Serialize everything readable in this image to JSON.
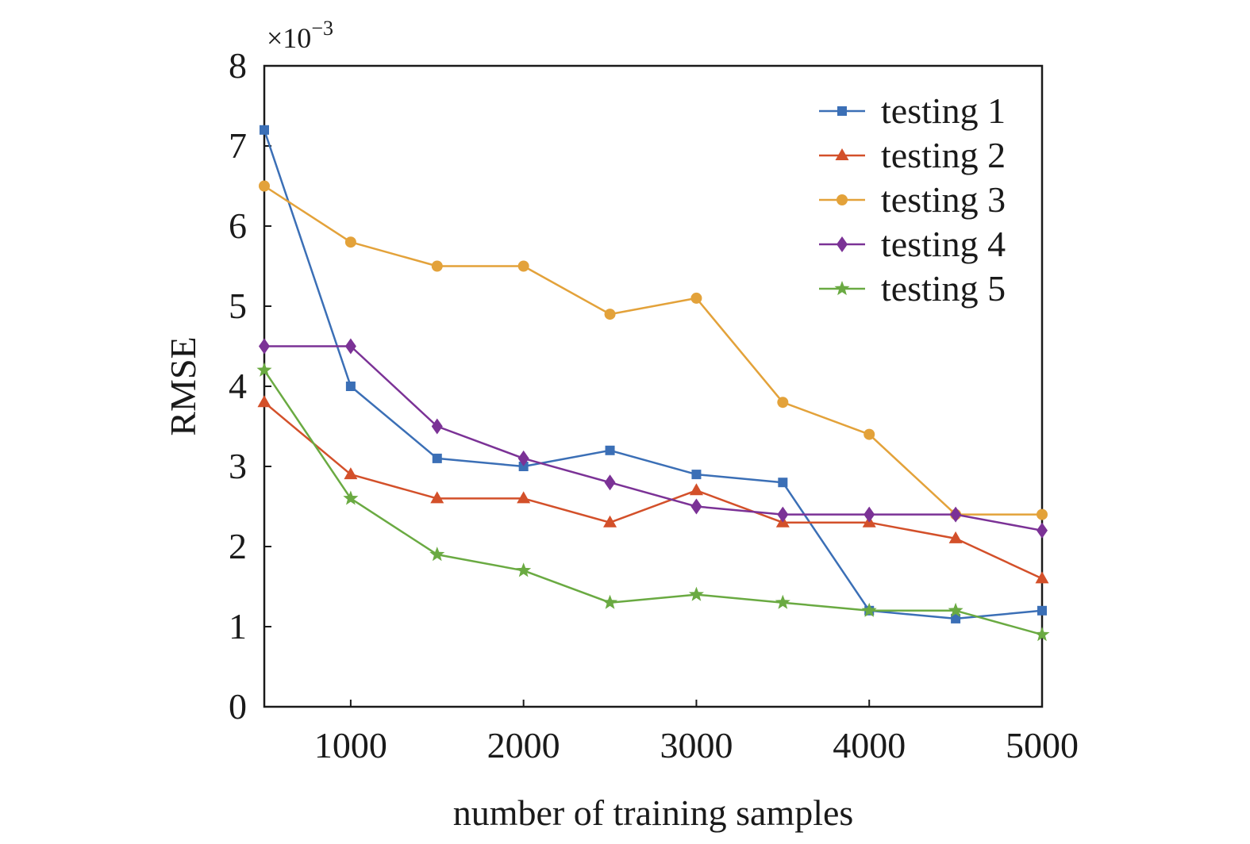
{
  "chart_data": {
    "type": "line",
    "xlabel": "number of training samples",
    "ylabel": "RMSE",
    "y_scale_note": {
      "base": "×10",
      "exponent": "−3"
    },
    "xlim": [
      500,
      5000
    ],
    "ylim": [
      0,
      8
    ],
    "x_ticks": [
      1000,
      2000,
      3000,
      4000,
      5000
    ],
    "y_ticks": [
      0,
      1,
      2,
      3,
      4,
      5,
      6,
      7,
      8
    ],
    "grid": false,
    "legend_position": "top-right",
    "x": [
      500,
      1000,
      1500,
      2000,
      2500,
      3000,
      3500,
      4000,
      4500,
      5000
    ],
    "series": [
      {
        "name": "testing 1",
        "color": "#3b6fb6",
        "marker": "square",
        "values": [
          7.2,
          4.0,
          3.1,
          3.0,
          3.2,
          2.9,
          2.8,
          1.2,
          1.1,
          1.2
        ]
      },
      {
        "name": "testing 2",
        "color": "#d3502a",
        "marker": "triangle",
        "values": [
          3.8,
          2.9,
          2.6,
          2.6,
          2.3,
          2.7,
          2.3,
          2.3,
          2.1,
          1.6
        ]
      },
      {
        "name": "testing 3",
        "color": "#e3a23a",
        "marker": "circle",
        "values": [
          6.5,
          5.8,
          5.5,
          5.5,
          4.9,
          5.1,
          3.8,
          3.4,
          2.4,
          2.4
        ]
      },
      {
        "name": "testing 4",
        "color": "#7b3296",
        "marker": "diamond",
        "values": [
          4.5,
          4.5,
          3.5,
          3.1,
          2.8,
          2.5,
          2.4,
          2.4,
          2.4,
          2.2
        ]
      },
      {
        "name": "testing 5",
        "color": "#6aaa42",
        "marker": "star",
        "values": [
          4.2,
          2.6,
          1.9,
          1.7,
          1.3,
          1.4,
          1.3,
          1.2,
          1.2,
          0.9
        ]
      }
    ]
  }
}
